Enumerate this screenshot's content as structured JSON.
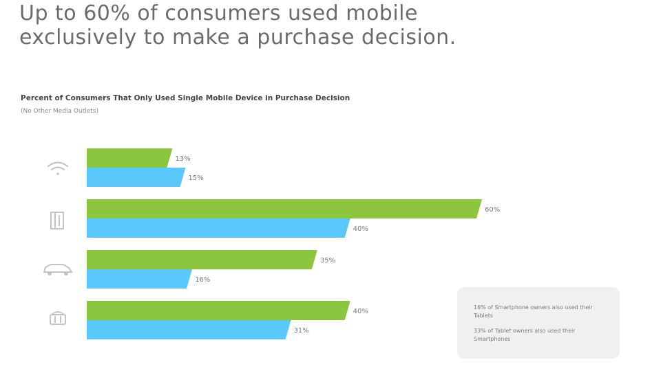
{
  "headline": "Up to 60% of consumers used mobile exclusively to make a purchase decision.",
  "chart_data": {
    "type": "bar",
    "orientation": "horizontal",
    "title": "Percent of Consumers That Only Used Single Mobile Device in Purchase Decision",
    "subtitle": "(No Other Media Outlets)",
    "categories": [
      "wifi-icon",
      "shopping-bag-icon",
      "car-icon",
      "basket-icon"
    ],
    "series": [
      {
        "color": "#8cc63f",
        "values": [
          13,
          60,
          35,
          40
        ],
        "labels": [
          "13%",
          "60%",
          "35%",
          "40%"
        ]
      },
      {
        "color": "#5ac8fa",
        "values": [
          15,
          40,
          16,
          31
        ],
        "labels": [
          "15%",
          "40%",
          "16%",
          "31%"
        ]
      }
    ],
    "xlim": [
      0,
      60
    ],
    "grid": false,
    "legend": "none"
  },
  "note": {
    "line1": "16% of Smartphone owners also used their Tablets",
    "line2": "33% of Tablet owners also used their Smartphones"
  }
}
